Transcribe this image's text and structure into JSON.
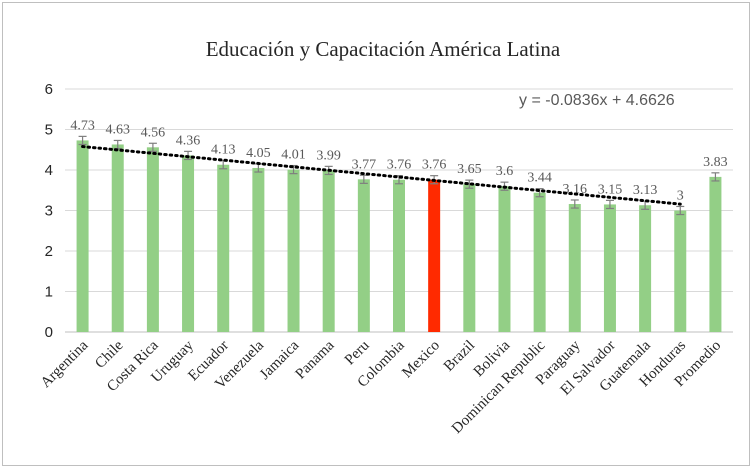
{
  "chart_data": {
    "type": "bar",
    "title": "Educación y Capacitación América Latina",
    "categories": [
      "Argentina",
      "Chile",
      "Costa Rica",
      "Uruguay",
      "Ecuador",
      "Venezuela",
      "Jamaica",
      "Panama",
      "Peru",
      "Colombia",
      "Mexico",
      "Brazil",
      "Bolivia",
      "Dominican Republic",
      "Paraguay",
      "El Salvador",
      "Guatemala",
      "Honduras",
      "Promedio"
    ],
    "values": [
      4.73,
      4.63,
      4.56,
      4.36,
      4.13,
      4.05,
      4.01,
      3.99,
      3.77,
      3.76,
      3.76,
      3.65,
      3.6,
      3.44,
      3.16,
      3.15,
      3.13,
      3,
      3.83
    ],
    "value_labels": [
      "4.73",
      "4.63",
      "4.56",
      "4.36",
      "4.13",
      "4.05",
      "4.01",
      "3.99",
      "3.77",
      "3.76",
      "3.76",
      "3.65",
      "3.6",
      "3.44",
      "3.16",
      "3.15",
      "3.13",
      "3",
      "3.83"
    ],
    "error": 0.1,
    "highlight_index": 10,
    "ylim": [
      0,
      6
    ],
    "yticks": [
      "0",
      "1",
      "2",
      "3",
      "4",
      "5",
      "6"
    ],
    "grid": true,
    "trendline": {
      "slope": -0.0836,
      "intercept": 4.6626,
      "equation": "y = -0.0836x + 4.6626"
    },
    "colors": {
      "bar": "#93cf86",
      "highlight": "#ff2a00",
      "grid": "#d9d9d9",
      "error": "#7f7f7f",
      "trend": "#000000"
    }
  }
}
